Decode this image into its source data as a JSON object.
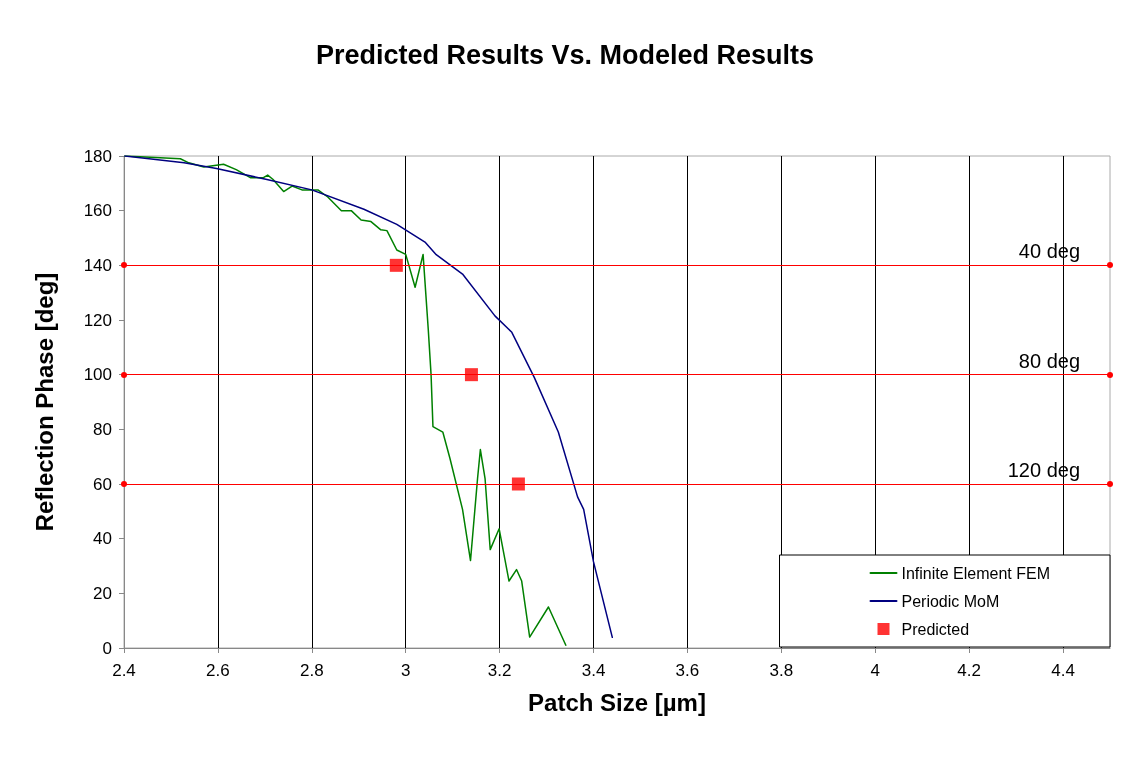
{
  "chart_data": {
    "type": "line",
    "title": "Predicted Results Vs. Modeled Results",
    "xlabel": "Patch Size [µm]",
    "ylabel": "Reflection Phase [deg]",
    "xlim": [
      2.4,
      4.5
    ],
    "xticks": [
      2.4,
      2.6,
      2.8,
      3,
      3.2,
      3.4,
      3.6,
      3.8,
      4,
      4.2,
      4.4
    ],
    "ylim": [
      0,
      180
    ],
    "yticks": [
      0,
      20,
      40,
      60,
      80,
      100,
      120,
      140,
      160,
      180
    ],
    "grid": "x",
    "legend": "bottom right",
    "marker": "none",
    "line_style": "solid",
    "series": [
      {
        "name": "Infinite Element FEM",
        "color": "#008000",
        "x": [
          2.402,
          2.52,
          2.538,
          2.57,
          2.612,
          2.639,
          2.67,
          2.696,
          2.706,
          2.717,
          2.74,
          2.758,
          2.779,
          2.813,
          2.834,
          2.863,
          2.884,
          2.905,
          2.926,
          2.947,
          2.96,
          2.981,
          3.0,
          3.02,
          3.037,
          3.048,
          3.054,
          3.058,
          3.079,
          3.094,
          3.121,
          3.138,
          3.153,
          3.159,
          3.169,
          3.18,
          3.199,
          3.22,
          3.236,
          3.247,
          3.264,
          3.304,
          3.341
        ],
        "values": [
          180,
          179,
          177.5,
          176,
          177,
          175,
          172,
          172,
          173,
          171.5,
          167,
          169,
          167.6,
          167.6,
          165,
          160,
          160,
          156.6,
          156,
          153,
          152.7,
          145.6,
          144,
          132,
          144,
          116.6,
          100,
          81,
          79,
          69.5,
          50.7,
          32,
          62,
          72.6,
          62,
          36,
          43.6,
          24.5,
          28.7,
          24.5,
          4,
          15,
          1
        ]
      },
      {
        "name": "Periodic MoM",
        "color": "#000080",
        "x": [
          2.402,
          2.528,
          2.597,
          2.702,
          2.8,
          2.911,
          2.981,
          3.041,
          3.065,
          3.121,
          3.19,
          3.226,
          3.274,
          3.325,
          3.366,
          3.379,
          3.4,
          3.44
        ],
        "values": [
          180,
          177.5,
          175.4,
          171.5,
          167.6,
          160.5,
          155,
          148.5,
          143.9,
          136.8,
          121.5,
          115.5,
          98.9,
          79,
          55.3,
          50.7,
          31.5,
          3.9
        ]
      },
      {
        "name": "Predicted",
        "color": "#ff0000",
        "type": "scatter",
        "marker": "square",
        "x": [
          2.98,
          3.14,
          3.24
        ],
        "values": [
          140,
          100,
          60
        ]
      }
    ],
    "ref_lines": [
      {
        "axis": "y",
        "value": 140,
        "label": "40 deg",
        "color": "#ff0000"
      },
      {
        "axis": "y",
        "value": 100,
        "label": "80 deg",
        "color": "#ff0000"
      },
      {
        "axis": "y",
        "value": 60,
        "label": "120 deg",
        "color": "#ff0000"
      }
    ]
  }
}
